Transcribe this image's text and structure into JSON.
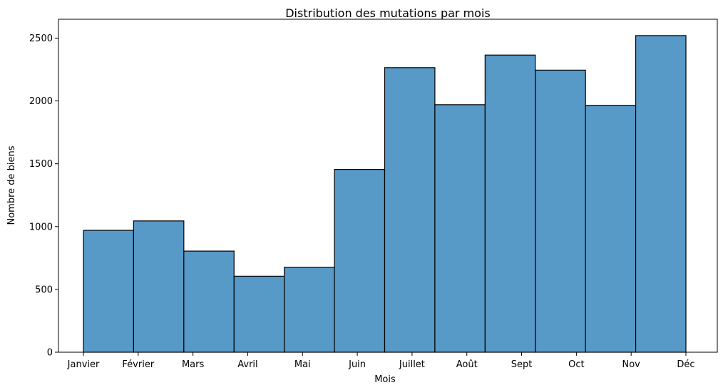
{
  "chart_data": {
    "type": "bar",
    "title": "Distribution des mutations par mois",
    "xlabel": "Mois",
    "ylabel": "Nombre de biens",
    "categories": [
      "Janvier",
      "Février",
      "Mars",
      "Avril",
      "Mai",
      "Juin",
      "Juillet",
      "Août",
      "Sept",
      "Oct",
      "Nov",
      "Déc"
    ],
    "values": [
      970,
      1045,
      805,
      605,
      675,
      1455,
      2265,
      1970,
      2365,
      2245,
      1965,
      2520
    ],
    "yticks": [
      0,
      500,
      1000,
      1500,
      2000,
      2500
    ],
    "ylim": [
      0,
      2650
    ],
    "bar_color": "#5799c7",
    "grid": false,
    "legend": "none"
  }
}
